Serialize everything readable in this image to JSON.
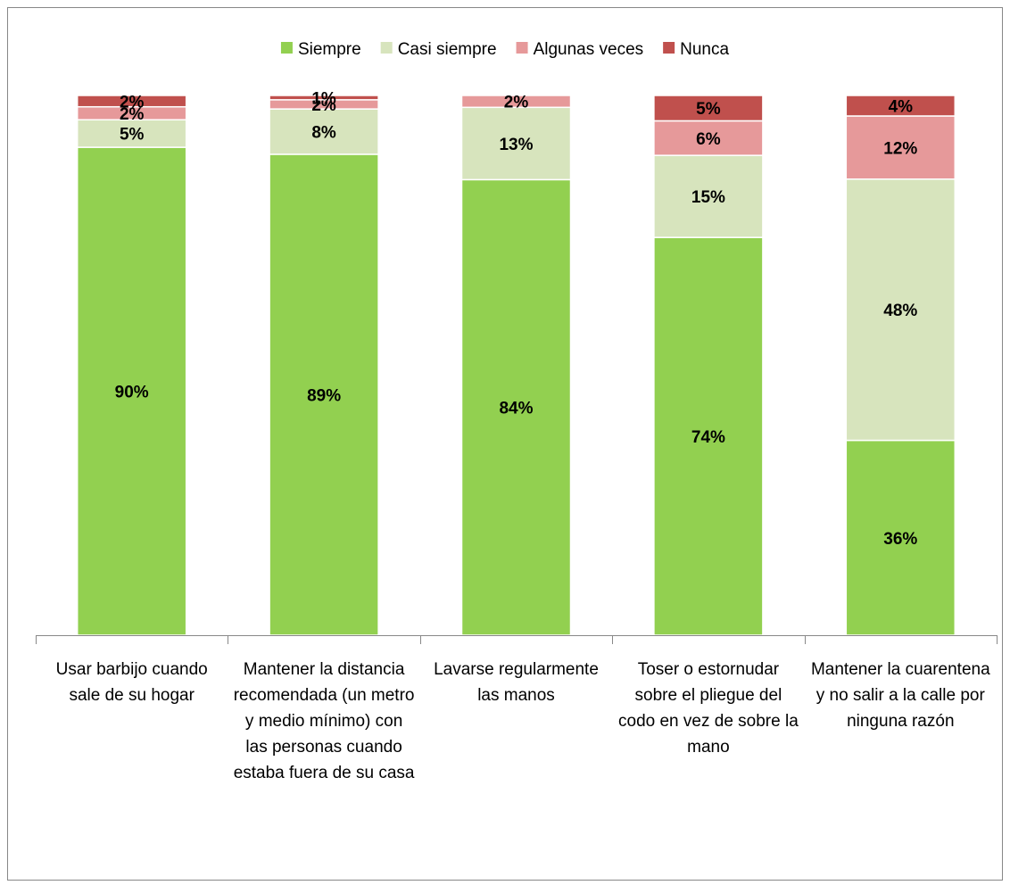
{
  "chart_data": {
    "type": "bar",
    "stacked": true,
    "categories": [
      "Usar barbijo cuando sale de su hogar",
      "Mantener la distancia recomendada (un metro y medio mínimo) con las personas cuando estaba fuera de su casa",
      "Lavarse regularmente las manos",
      "Toser o estornudar sobre el pliegue del codo en vez de sobre la mano",
      "Mantener la cuarentena y no salir a la calle por ninguna razón"
    ],
    "series": [
      {
        "name": "Siempre",
        "color": "#92d050",
        "values": [
          90.4,
          89.1,
          84.4,
          73.7,
          36.1
        ],
        "value_labels": [
          "90%",
          "89%",
          "84%",
          "74%",
          "36%"
        ]
      },
      {
        "name": "Casi siempre",
        "color": "#d7e4bd",
        "values": [
          5.1,
          8.4,
          13.4,
          15.2,
          48.4
        ],
        "value_labels": [
          "5%",
          "8%",
          "13%",
          "15%",
          "48%"
        ]
      },
      {
        "name": "Algunas veces",
        "color": "#e6999a",
        "values": [
          2.4,
          1.7,
          2.2,
          6.4,
          11.7
        ],
        "value_labels": [
          "2%",
          "2%",
          "2%",
          "6%",
          "12%"
        ]
      },
      {
        "name": "Nunca",
        "color": "#c0504d",
        "values": [
          2.1,
          0.8,
          0,
          4.7,
          3.8
        ],
        "value_labels": [
          "2%",
          "1%",
          null,
          "5%",
          "4%"
        ]
      }
    ],
    "ylim": [
      0,
      100
    ],
    "legend": "top"
  }
}
